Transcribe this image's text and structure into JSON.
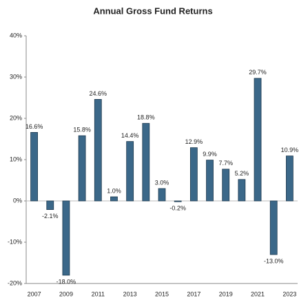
{
  "chart_data": {
    "type": "bar",
    "title": "Annual Gross Fund Returns",
    "categories": [
      "2007",
      null,
      "2009",
      null,
      "2011",
      null,
      "2013",
      null,
      "2015",
      null,
      "2017",
      null,
      "2019",
      null,
      "2021",
      null,
      "2023"
    ],
    "values": [
      16.6,
      -2.1,
      -18.0,
      15.8,
      24.6,
      1.0,
      14.4,
      18.8,
      3.0,
      -0.2,
      12.9,
      9.9,
      7.7,
      5.2,
      29.7,
      -13.0,
      10.9
    ],
    "value_labels": [
      "16.6%",
      "-2.1%",
      "-18.0%",
      "15.8%",
      "24.6%",
      "1.0%",
      "14.4%",
      "18.8%",
      "3.0%",
      "-0.2%",
      "12.9%",
      "9.9%",
      "7.7%",
      "5.2%",
      "29.7%",
      "-13.0%",
      "10.9%"
    ],
    "color": "#3b6889",
    "ylim": [
      -20,
      40
    ],
    "yticks": [
      {
        "value": -20,
        "label": "-20%"
      },
      {
        "value": -10,
        "label": "-10%"
      },
      {
        "value": 0,
        "label": "0%"
      },
      {
        "value": 10,
        "label": "10%"
      },
      {
        "value": 20,
        "label": "20%"
      },
      {
        "value": 30,
        "label": "30%"
      },
      {
        "value": 40,
        "label": "40%"
      }
    ],
    "grid": false
  }
}
